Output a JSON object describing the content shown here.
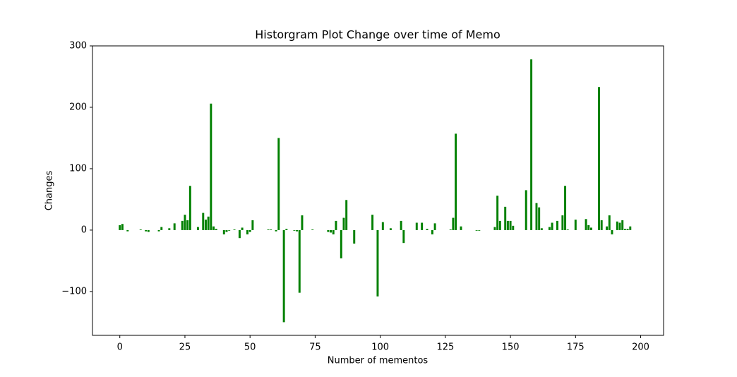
{
  "chart_data": {
    "type": "bar",
    "title": "Historgram Plot Change over time of Memo",
    "xlabel": "Number of mementos",
    "ylabel": "Changes",
    "color": "#008000",
    "x": [
      0,
      1,
      2,
      3,
      4,
      5,
      6,
      7,
      8,
      9,
      10,
      11,
      12,
      13,
      14,
      15,
      16,
      17,
      18,
      19,
      20,
      21,
      22,
      23,
      24,
      25,
      26,
      27,
      28,
      29,
      30,
      31,
      32,
      33,
      34,
      35,
      36,
      37,
      38,
      39,
      40,
      41,
      42,
      43,
      44,
      45,
      46,
      47,
      48,
      49,
      50,
      51,
      52,
      53,
      54,
      55,
      56,
      57,
      58,
      59,
      60,
      61,
      62,
      63,
      64,
      65,
      66,
      67,
      68,
      69,
      70,
      71,
      72,
      73,
      74,
      75,
      76,
      77,
      78,
      79,
      80,
      81,
      82,
      83,
      84,
      85,
      86,
      87,
      88,
      89,
      90,
      91,
      92,
      93,
      94,
      95,
      96,
      97,
      98,
      99,
      100,
      101,
      102,
      103,
      104,
      105,
      106,
      107,
      108,
      109,
      110,
      111,
      112,
      113,
      114,
      115,
      116,
      117,
      118,
      119,
      120,
      121,
      122,
      123,
      124,
      125,
      126,
      127,
      128,
      129,
      130,
      131,
      132,
      133,
      134,
      135,
      136,
      137,
      138,
      139,
      140,
      141,
      142,
      143,
      144,
      145,
      146,
      147,
      148,
      149,
      150,
      151,
      152,
      153,
      154,
      155,
      156,
      157,
      158,
      159,
      160,
      161,
      162,
      163,
      164,
      165,
      166,
      167,
      168,
      169,
      170,
      171,
      172,
      173,
      174,
      175,
      176,
      177,
      178,
      179,
      180,
      181,
      182,
      183,
      184,
      185,
      186,
      187,
      188,
      189,
      190,
      191,
      192,
      193,
      194,
      195,
      196
    ],
    "values": [
      8,
      10,
      0,
      -2,
      0,
      0,
      0,
      0,
      1,
      0,
      -2,
      -3,
      0,
      0,
      0,
      -2,
      5,
      0,
      0,
      3,
      0,
      11,
      0,
      0,
      15,
      25,
      16,
      72,
      0,
      0,
      5,
      0,
      28,
      17,
      22,
      206,
      6,
      2,
      0,
      0,
      -7,
      -3,
      -1,
      0,
      1,
      0,
      -13,
      4,
      0,
      -7,
      -3,
      16,
      0,
      0,
      0,
      0,
      0,
      1,
      1,
      0,
      -2,
      150,
      0,
      -150,
      2,
      0,
      0,
      -1,
      -2,
      -102,
      24,
      0,
      0,
      0,
      1,
      0,
      0,
      0,
      0,
      0,
      -3,
      -4,
      -7,
      15,
      0,
      -46,
      20,
      49,
      0,
      0,
      -22,
      0,
      0,
      0,
      0,
      0,
      0,
      25,
      0,
      -108,
      0,
      13,
      0,
      0,
      3,
      0,
      0,
      0,
      15,
      -21,
      0,
      0,
      0,
      0,
      12,
      0,
      12,
      0,
      2,
      0,
      -7,
      11,
      0,
      0,
      0,
      0,
      0,
      1,
      20,
      157,
      0,
      6,
      0,
      0,
      0,
      0,
      0,
      -1,
      -1,
      0,
      0,
      0,
      0,
      0,
      5,
      56,
      15,
      0,
      38,
      15,
      15,
      7,
      0,
      0,
      0,
      0,
      65,
      0,
      278,
      0,
      44,
      37,
      3,
      0,
      0,
      5,
      12,
      0,
      15,
      0,
      24,
      72,
      1,
      0,
      0,
      17,
      0,
      0,
      0,
      18,
      8,
      4,
      0,
      0,
      233,
      16,
      0,
      6,
      24,
      -7,
      0,
      14,
      12,
      16,
      2,
      2,
      6
    ],
    "bar_width": 0.8,
    "xlim": [
      -10.5,
      208.8
    ],
    "ylim": [
      -171.4,
      300
    ],
    "xticks": [
      0,
      25,
      50,
      75,
      100,
      125,
      150,
      175,
      200
    ],
    "yticks": [
      {
        "value": -100,
        "label": "−100"
      },
      0,
      100,
      200,
      300
    ]
  }
}
